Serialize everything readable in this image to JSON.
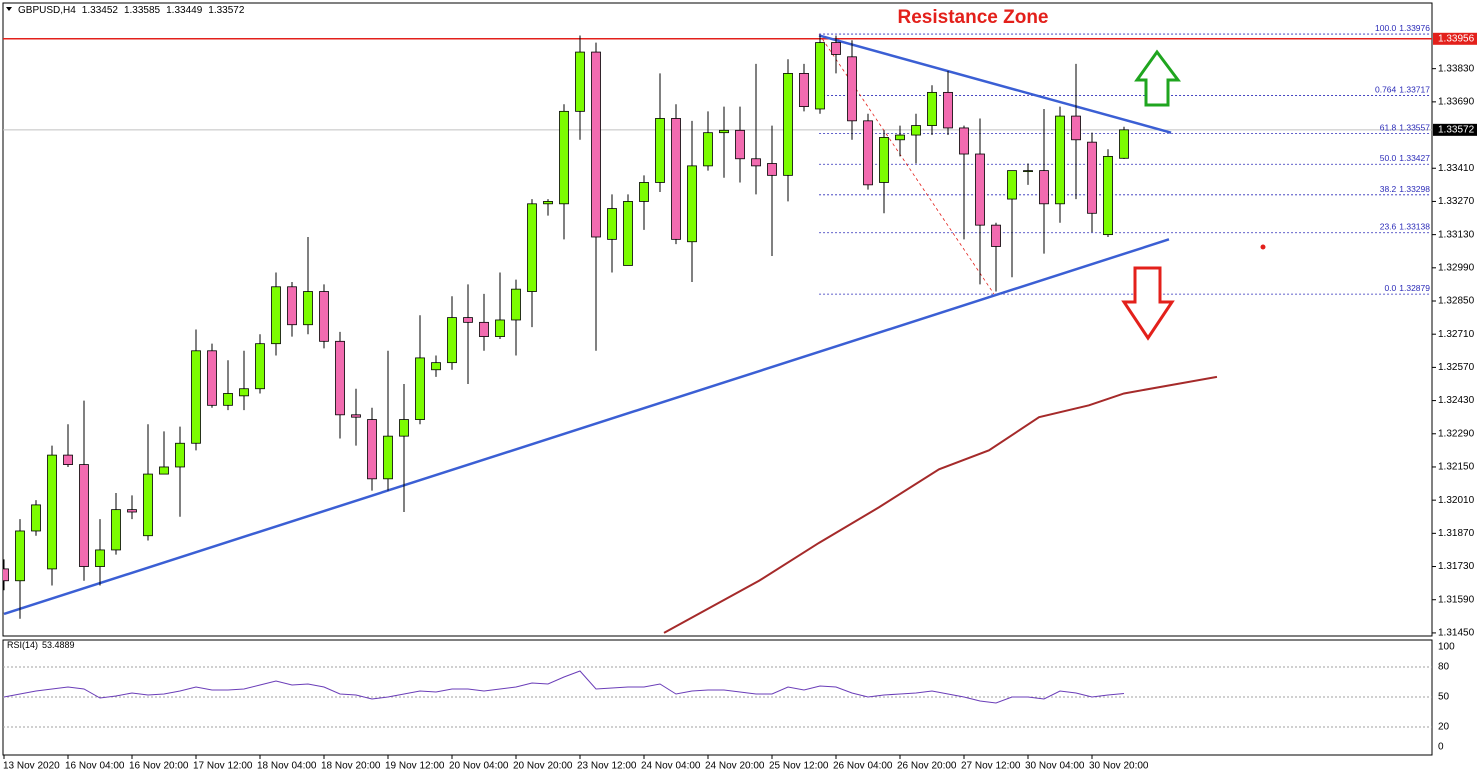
{
  "chart_data": {
    "type": "candlestick",
    "symbol": "GBPUSD,H4",
    "title": "Resistance Zone",
    "categories": [
      "13 Nov 2020",
      null,
      null,
      null,
      "16 Nov 04:00",
      null,
      null,
      null,
      "16 Nov 20:00",
      null,
      null,
      null,
      "17 Nov 12:00",
      null,
      null,
      null,
      "18 Nov 04:00",
      null,
      null,
      null,
      "18 Nov 20:00",
      null,
      null,
      null,
      "19 Nov 12:00",
      null,
      null,
      null,
      "20 Nov 04:00",
      null,
      null,
      null,
      "20 Nov 20:00",
      null,
      null,
      null,
      "23 Nov 12:00",
      null,
      null,
      null,
      "24 Nov 04:00",
      null,
      null,
      null,
      "24 Nov 20:00",
      null,
      null,
      null,
      "25 Nov 12:00",
      null,
      null,
      null,
      "26 Nov 04:00",
      null,
      null,
      null,
      "26 Nov 20:00",
      null,
      null,
      null,
      "27 Nov 12:00",
      null,
      null,
      null,
      "30 Nov 04:00",
      null,
      null,
      null,
      "30 Nov 20:00",
      null,
      null
    ],
    "open": [
      1.3172,
      1.3167,
      1.3188,
      1.3172,
      1.322,
      1.3216,
      1.3173,
      1.318,
      1.3197,
      1.3186,
      1.3212,
      1.3215,
      1.3225,
      1.3264,
      1.3241,
      1.3245,
      1.3248,
      1.3267,
      1.3291,
      1.3275,
      1.3289,
      1.3268,
      1.3237,
      1.3235,
      1.321,
      1.3228,
      1.3235,
      1.3256,
      1.3259,
      1.3278,
      1.3276,
      1.327,
      1.3277,
      1.3289,
      1.3326,
      1.3326,
      1.3365,
      1.339,
      1.3311,
      1.33,
      1.3327,
      1.3335,
      1.3362,
      1.331,
      1.3342,
      1.3356,
      1.3357,
      1.3345,
      1.3343,
      1.3338,
      1.3381,
      1.3366,
      1.3394,
      1.3388,
      1.3361,
      1.3335,
      1.3353,
      1.3355,
      1.3359,
      1.3373,
      1.3358,
      1.3347,
      1.3317,
      1.3328,
      1.334,
      1.334,
      1.3326,
      1.3363,
      1.3352,
      1.3313,
      1.33452
    ],
    "high": [
      1.3176,
      1.3193,
      1.3201,
      1.3224,
      1.3233,
      1.3243,
      1.3193,
      1.3204,
      1.3203,
      1.3233,
      1.323,
      1.3232,
      1.3273,
      1.3267,
      1.326,
      1.3264,
      1.3271,
      1.3297,
      1.3293,
      1.3312,
      1.3292,
      1.3272,
      1.3248,
      1.324,
      1.3264,
      1.325,
      1.3279,
      1.3262,
      1.3287,
      1.3292,
      1.3288,
      1.3297,
      1.3294,
      1.3328,
      1.3328,
      1.3368,
      1.3397,
      1.3394,
      1.333,
      1.333,
      1.3338,
      1.3381,
      1.3368,
      1.3361,
      1.3365,
      1.3367,
      1.3367,
      1.3385,
      1.3359,
      1.3387,
      1.3385,
      1.3397,
      1.3397,
      1.3395,
      1.3364,
      1.3357,
      1.3359,
      1.3364,
      1.3376,
      1.3382,
      1.3359,
      1.3362,
      1.3318,
      1.334,
      1.3343,
      1.3366,
      1.3367,
      1.3385,
      1.3356,
      1.3349,
      1.33585
    ],
    "low": [
      1.3163,
      1.3151,
      1.3186,
      1.3165,
      1.3215,
      1.3167,
      1.3165,
      1.3178,
      1.3193,
      1.3184,
      1.3212,
      1.3194,
      1.3222,
      1.324,
      1.3239,
      1.3239,
      1.3246,
      1.3262,
      1.327,
      1.3271,
      1.3265,
      1.3227,
      1.3224,
      1.3205,
      1.3205,
      1.3196,
      1.3233,
      1.3253,
      1.3256,
      1.325,
      1.3264,
      1.3269,
      1.3262,
      1.3274,
      1.3321,
      1.3311,
      1.3353,
      1.3264,
      1.3297,
      1.33,
      1.3315,
      1.3331,
      1.3309,
      1.3293,
      1.334,
      1.3337,
      1.3335,
      1.333,
      1.3304,
      1.3327,
      1.3365,
      1.3364,
      1.3381,
      1.3353,
      1.3332,
      1.3322,
      1.3346,
      1.3343,
      1.3355,
      1.3355,
      1.3311,
      1.3292,
      1.3289,
      1.3295,
      1.3334,
      1.3305,
      1.3318,
      1.3328,
      1.3314,
      1.3312,
      1.33449
    ],
    "close": [
      1.3167,
      1.3188,
      1.3199,
      1.322,
      1.3216,
      1.3173,
      1.318,
      1.3197,
      1.3196,
      1.3212,
      1.3215,
      1.3225,
      1.3264,
      1.3241,
      1.3246,
      1.3248,
      1.3267,
      1.3291,
      1.3275,
      1.3289,
      1.3268,
      1.3237,
      1.3236,
      1.321,
      1.3228,
      1.3235,
      1.3261,
      1.3259,
      1.3278,
      1.3276,
      1.327,
      1.3277,
      1.329,
      1.3326,
      1.3327,
      1.3365,
      1.339,
      1.3312,
      1.3324,
      1.3327,
      1.3335,
      1.3362,
      1.3311,
      1.3342,
      1.3356,
      1.3357,
      1.3345,
      1.3342,
      1.3338,
      1.3381,
      1.3367,
      1.3394,
      1.3389,
      1.3361,
      1.3334,
      1.3354,
      1.3355,
      1.3359,
      1.3373,
      1.3358,
      1.3347,
      1.3317,
      1.3308,
      1.334,
      1.334,
      1.3326,
      1.3363,
      1.3353,
      1.3322,
      1.3346,
      1.33572
    ],
    "up_color": "#7cfc00",
    "down_color": "#f26bb0",
    "ylim": [
      1.31437,
      1.34107
    ],
    "yticks": [
      {
        "value": 1.3383,
        "label": "1.33830"
      },
      {
        "value": 1.3369,
        "label": "1.33690"
      },
      {
        "value": 1.3341,
        "label": "1.33410"
      },
      {
        "value": 1.3327,
        "label": "1.33270"
      },
      {
        "value": 1.3313,
        "label": "1.33130"
      },
      {
        "value": 1.3299,
        "label": "1.32990"
      },
      {
        "value": 1.3285,
        "label": "1.32850"
      },
      {
        "value": 1.3271,
        "label": "1.32710"
      },
      {
        "value": 1.3257,
        "label": "1.32570"
      },
      {
        "value": 1.3243,
        "label": "1.32430"
      },
      {
        "value": 1.3229,
        "label": "1.32290"
      },
      {
        "value": 1.3215,
        "label": "1.32150"
      },
      {
        "value": 1.3201,
        "label": "1.32010"
      },
      {
        "value": 1.3187,
        "label": "1.31870"
      },
      {
        "value": 1.3173,
        "label": "1.31730"
      },
      {
        "value": 1.3159,
        "label": "1.31590"
      },
      {
        "value": 1.3145,
        "label": "1.31450"
      }
    ],
    "resistance_level": {
      "value": 1.33956,
      "color": "#e3201b"
    },
    "trend_lines": [
      {
        "x": [
          0,
          72.81
        ],
        "y": [
          1.3153,
          1.3311
        ],
        "color": "#3b5fd4"
      },
      {
        "x": [
          50.94,
          72.94
        ],
        "y": [
          1.3397,
          1.3356
        ],
        "color": "#3b5fd4"
      }
    ],
    "moving_average": {
      "x": [
        41.25,
        47.19,
        50.94,
        54.69,
        58.44,
        61.56,
        64.69,
        67.81,
        70,
        75.81
      ],
      "values": [
        1.3145,
        1.3167,
        1.3183,
        1.3198,
        1.3214,
        1.3222,
        1.3236,
        1.3241,
        1.3246,
        1.3253
      ],
      "color": "#a52a2a"
    },
    "fibonacci": {
      "x": [
        50.94,
        61.88
      ],
      "color": "#2b2bb8",
      "levels": [
        {
          "label": "100.0",
          "value": 1.33976
        },
        {
          "label": "0.764",
          "value": 1.33717
        },
        {
          "label": "61.8",
          "value": 1.33557
        },
        {
          "label": "50.0",
          "value": 1.33427
        },
        {
          "label": "38.2",
          "value": 1.33298
        },
        {
          "label": "23.6",
          "value": 1.33138
        },
        {
          "label": "0.0",
          "value": 1.32879
        }
      ]
    },
    "rsi": {
      "name": "RSI(14)",
      "color": "#6a3db8",
      "ylim": [
        0,
        100
      ],
      "yticks": [
        100,
        80,
        50,
        20,
        0
      ],
      "values": [
        50,
        53,
        56,
        58,
        60,
        58,
        49,
        51,
        54,
        52,
        53,
        56,
        60,
        57,
        57,
        58,
        62,
        66,
        62,
        63,
        60,
        53,
        52,
        48,
        50,
        53,
        56,
        55,
        58,
        58,
        56,
        58,
        60,
        64,
        63,
        70,
        76,
        58,
        59,
        60,
        60,
        63,
        53,
        56,
        57,
        57,
        55,
        53,
        53,
        60,
        57,
        61,
        60,
        54,
        50,
        52,
        53,
        54,
        56,
        53,
        50,
        46,
        44,
        50,
        50,
        48,
        56,
        54,
        50,
        52,
        53.4889
      ]
    }
  }
}
